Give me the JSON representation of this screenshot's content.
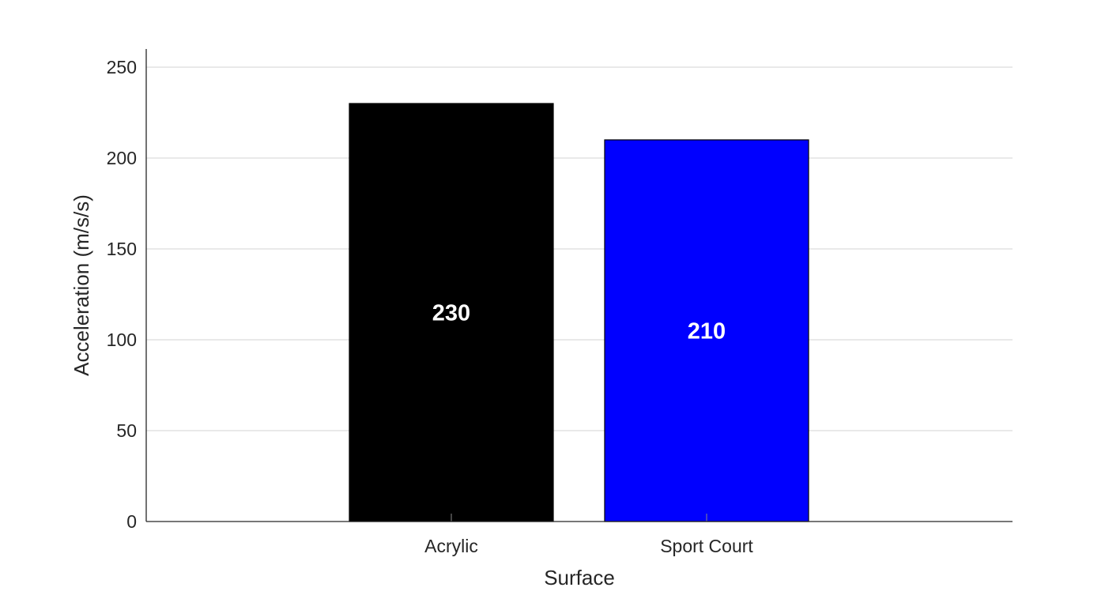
{
  "chart_data": {
    "type": "bar",
    "categories": [
      "Acrylic",
      "Sport Court"
    ],
    "values": [
      230,
      210
    ],
    "data_labels": [
      "230",
      "210"
    ],
    "colors": [
      "#000000",
      "#0000ff"
    ],
    "xlabel": "Surface",
    "ylabel": "Acceleration (m/s/s)",
    "ylim": [
      0,
      260
    ],
    "yticks": [
      0,
      50,
      100,
      150,
      200,
      250
    ],
    "ytick_labels": [
      "0",
      "50",
      "100",
      "150",
      "200",
      "250"
    ],
    "grid": "horizontal",
    "legend": "none"
  }
}
